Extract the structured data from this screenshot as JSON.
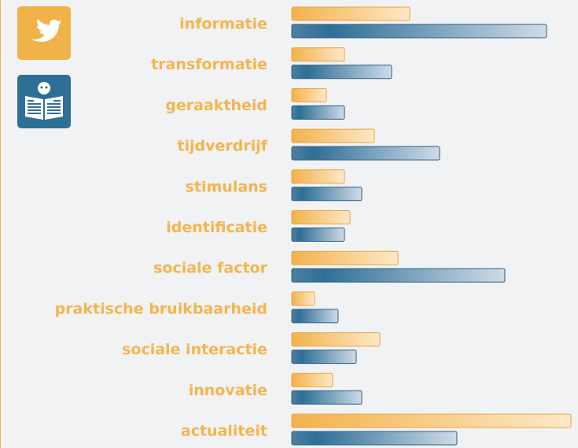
{
  "chart_data": {
    "type": "bar",
    "orientation": "horizontal",
    "categories": [
      "informatie",
      "transformatie",
      "geraaktheid",
      "tijdverdrijf",
      "stimulans",
      "identificatie",
      "sociale factor",
      "praktische bruikbaarheid",
      "sociale interactie",
      "innovatie",
      "actualiteit"
    ],
    "series": [
      {
        "color": "#f2b24a",
        "values": [
          150,
          67,
          44,
          105,
          67,
          74,
          135,
          29,
          112,
          52,
          355
        ]
      },
      {
        "color": "#2e6f96",
        "values": [
          324,
          127,
          67,
          188,
          89,
          67,
          271,
          59,
          82,
          89,
          210
        ]
      }
    ]
  }
}
